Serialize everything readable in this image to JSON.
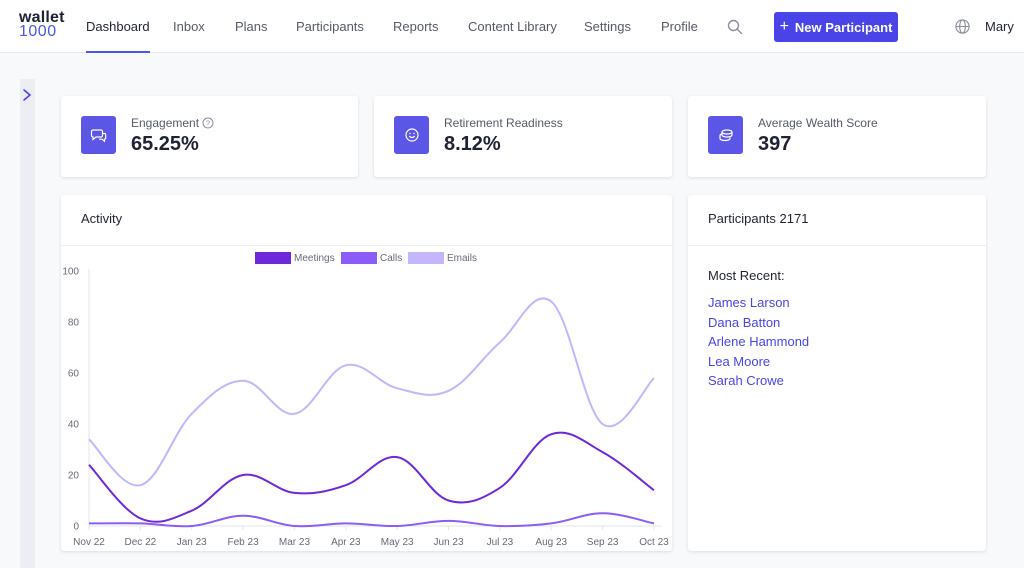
{
  "app": {
    "logo_line1": "wallet",
    "logo_line2": "1000"
  },
  "nav": {
    "items": [
      {
        "label": "Dashboard",
        "active": true
      },
      {
        "label": "Inbox",
        "active": false
      },
      {
        "label": "Plans",
        "active": false
      },
      {
        "label": "Participants",
        "active": false
      },
      {
        "label": "Reports",
        "active": false
      },
      {
        "label": "Content Library",
        "active": false
      },
      {
        "label": "Settings",
        "active": false
      },
      {
        "label": "Profile",
        "active": false
      }
    ],
    "new_button_label": "New Participant",
    "user_name": "Mary"
  },
  "stats": [
    {
      "label": "Engagement",
      "value": "65.25%",
      "icon": "chat-icon",
      "help": true
    },
    {
      "label": "Retirement Readiness",
      "value": "8.12%",
      "icon": "smile-icon",
      "help": false
    },
    {
      "label": "Average Wealth Score",
      "value": "397",
      "icon": "coins-icon",
      "help": false
    }
  ],
  "activity": {
    "title": "Activity"
  },
  "participants": {
    "title": "Participants 2171",
    "recent_label": "Most Recent:",
    "recent": [
      "James Larson",
      "Dana Batton",
      "Arlene Hammond",
      "Lea Moore",
      "Sarah Crowe"
    ]
  },
  "colors": {
    "accent": "#4a44e8",
    "meetings": "#6d28d9",
    "calls": "#8b5cf6",
    "emails": "#c4b5fd"
  },
  "chart_data": {
    "type": "line",
    "categories": [
      "Nov 22",
      "Dec 22",
      "Jan 23",
      "Feb 23",
      "Mar 23",
      "Apr 23",
      "May 23",
      "Jun 23",
      "Jul 23",
      "Aug 23",
      "Sep 23",
      "Oct 23"
    ],
    "series": [
      {
        "name": "Meetings",
        "values": [
          24,
          3,
          6,
          20,
          13,
          16,
          27,
          10,
          15,
          36,
          29,
          14
        ],
        "color": "#6d28d9"
      },
      {
        "name": "Calls",
        "values": [
          1,
          1,
          0,
          4,
          0,
          1,
          0,
          2,
          0,
          1,
          5,
          1
        ],
        "color": "#8b5cf6"
      },
      {
        "name": "Emails",
        "values": [
          34,
          16,
          44,
          57,
          44,
          63,
          54,
          53,
          72,
          88,
          40,
          58
        ],
        "color": "#c4b5fd"
      }
    ],
    "yticks": [
      "0",
      "20",
      "40",
      "60",
      "80",
      "100"
    ],
    "ylim": [
      0,
      100
    ],
    "xlabel": "",
    "ylabel": "",
    "grid": false,
    "legend": "top-center"
  }
}
